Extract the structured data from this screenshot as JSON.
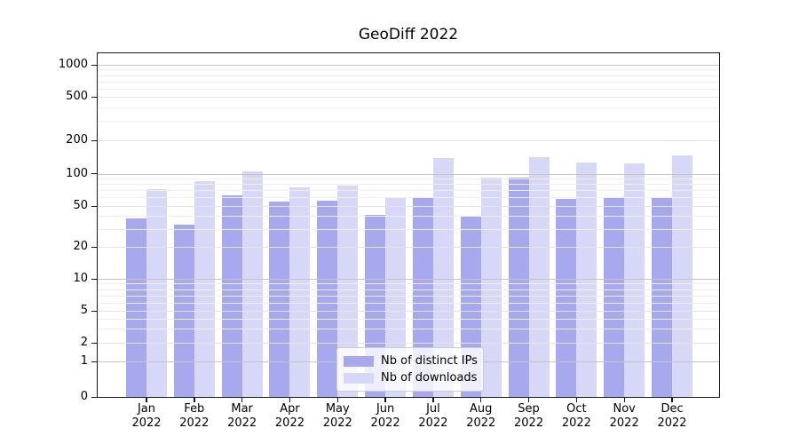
{
  "title": "GeoDiff 2022",
  "chart_data": {
    "type": "bar",
    "title": "GeoDiff 2022",
    "categories": [
      "Jan 2022",
      "Feb 2022",
      "Mar 2022",
      "Apr 2022",
      "May 2022",
      "Jun 2022",
      "Jul 2022",
      "Aug 2022",
      "Sep 2022",
      "Oct 2022",
      "Nov 2022",
      "Dec 2022"
    ],
    "x_tick_months": [
      "Jan",
      "Feb",
      "Mar",
      "Apr",
      "May",
      "Jun",
      "Jul",
      "Aug",
      "Sep",
      "Oct",
      "Nov",
      "Dec"
    ],
    "x_tick_year": "2022",
    "series": [
      {
        "name": "Nb of distinct IPs",
        "color": "#a8a8ee",
        "values": [
          38,
          33,
          63,
          55,
          56,
          41,
          59,
          39,
          92,
          58,
          60,
          60
        ]
      },
      {
        "name": "Nb of downloads",
        "color": "#d7d7f7",
        "values": [
          72,
          85,
          104,
          74,
          78,
          61,
          138,
          91,
          140,
          126,
          124,
          146
        ]
      }
    ],
    "y_axis": {
      "scale": "symlog",
      "ticks": [
        0,
        1,
        2,
        5,
        10,
        20,
        50,
        100,
        200,
        500,
        1000
      ],
      "minor_gridlines": [
        3,
        4,
        6,
        7,
        8,
        9,
        30,
        40,
        60,
        70,
        80,
        90,
        300,
        400,
        600,
        700,
        800,
        900
      ]
    },
    "ylim": [
      0,
      1200
    ],
    "grid": true,
    "legend": {
      "position": "lower center",
      "entries": [
        "Nb of distinct IPs",
        "Nb of downloads"
      ]
    },
    "colors": {
      "grid_major": "#c5c5c5",
      "grid_sub": "#e3e3e3",
      "grid_minor": "#efefef",
      "spine": "#1a1a1a",
      "background": "#ffffff"
    }
  }
}
